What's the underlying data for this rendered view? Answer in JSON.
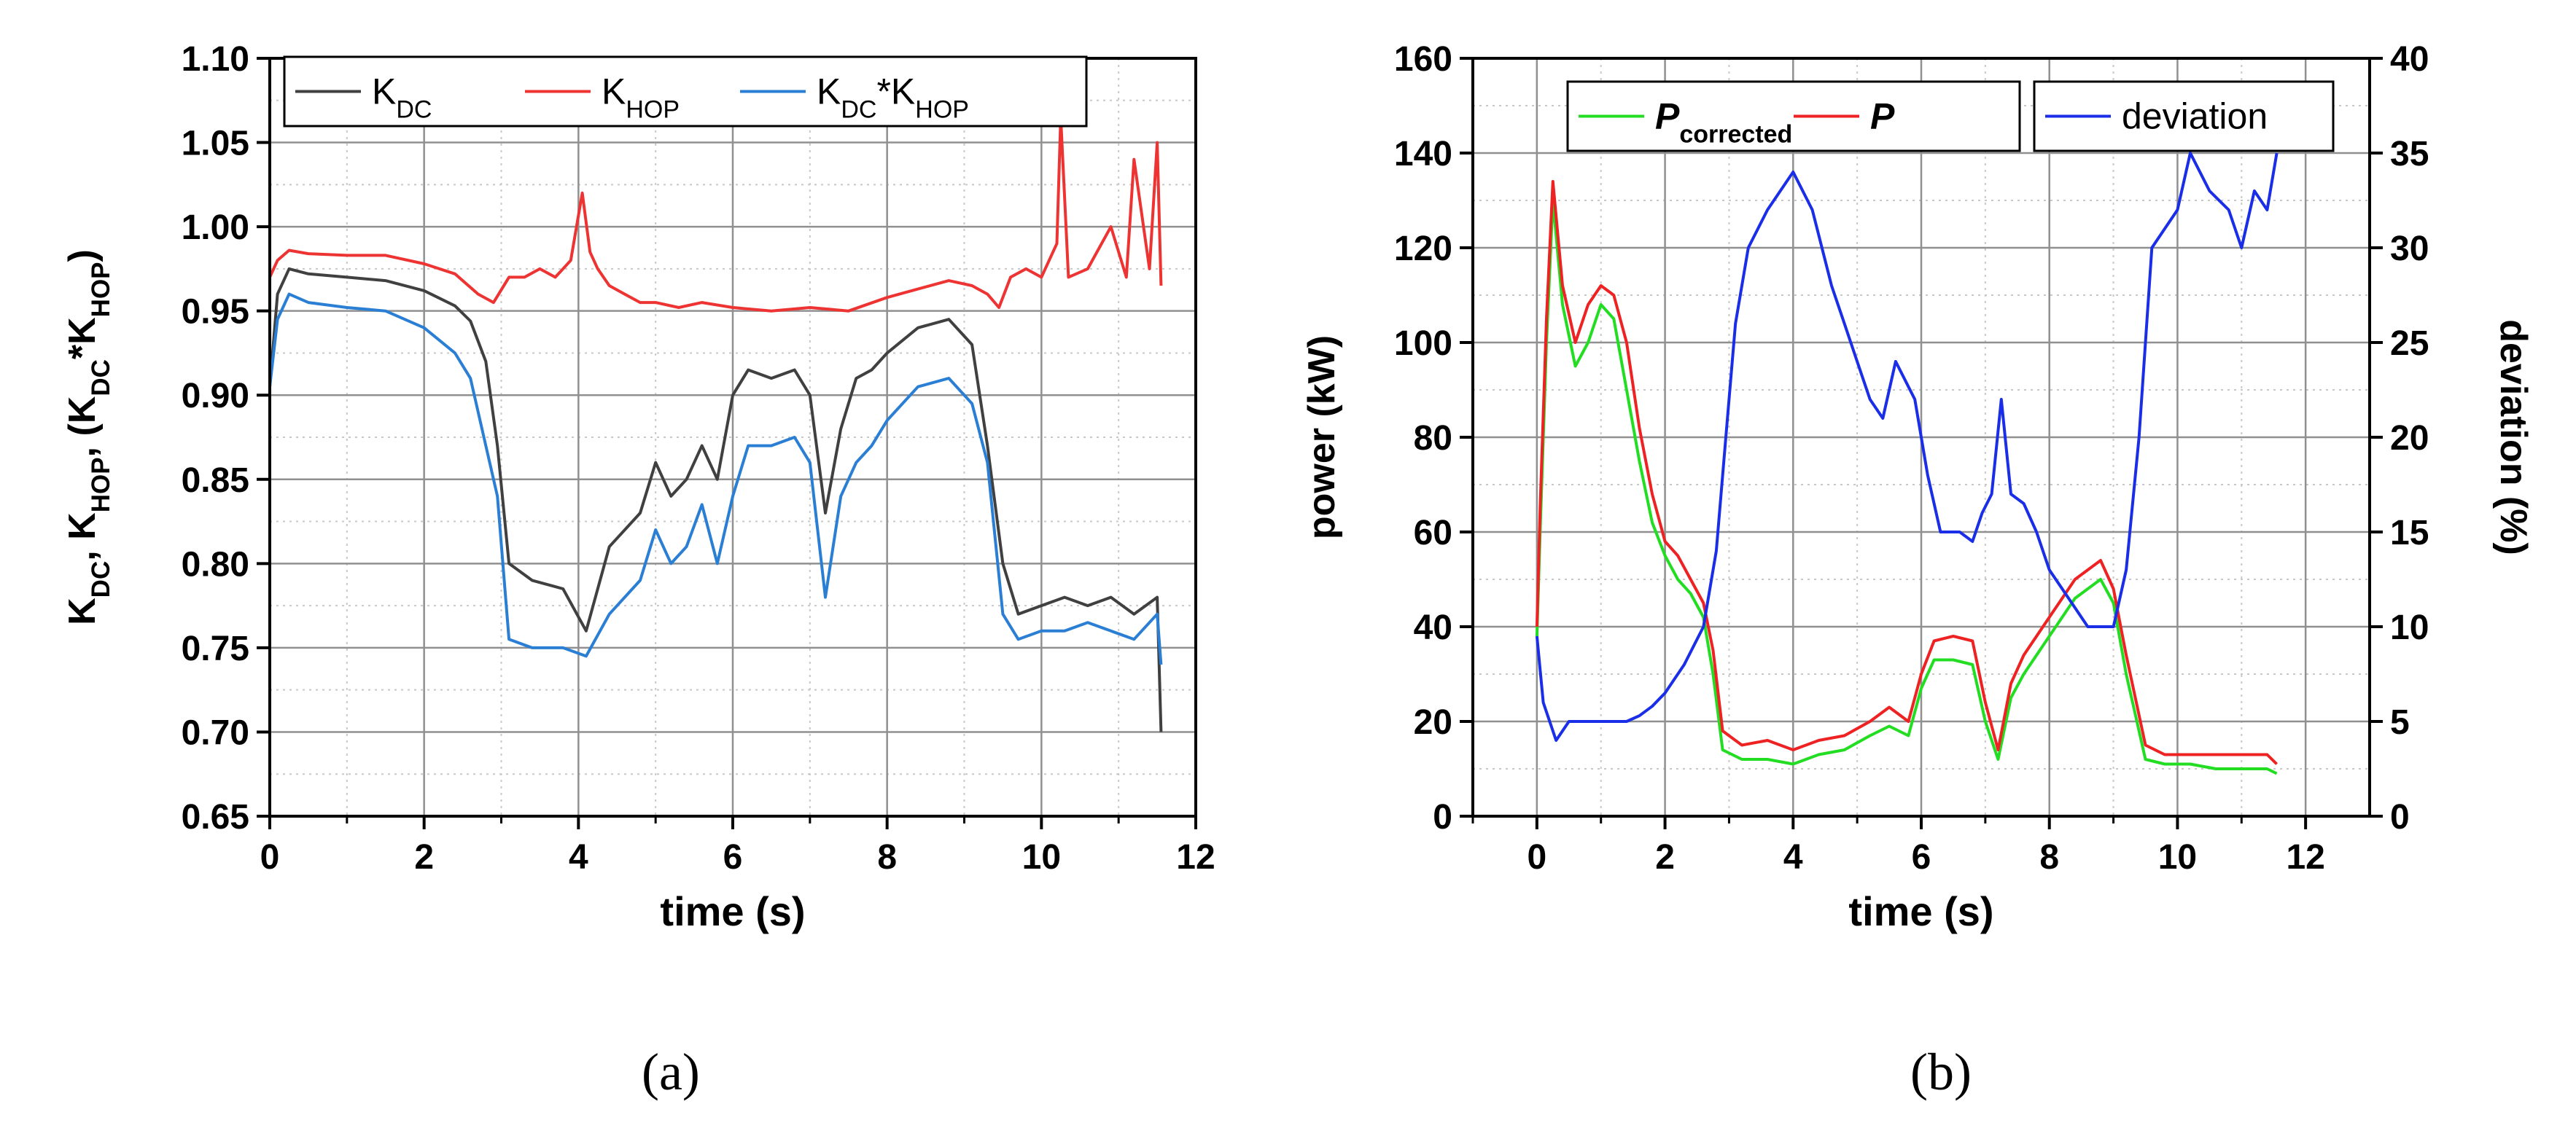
{
  "captions": {
    "a": "(a)",
    "b": "(b)"
  },
  "chart_data": [
    {
      "type": "line",
      "panel": "a",
      "title": "",
      "xlabel": "time (s)",
      "ylabel_parts": [
        {
          "t": "K"
        },
        {
          "t": "DC",
          "sub": true
        },
        {
          "t": ", K"
        },
        {
          "t": "HOP",
          "sub": true
        },
        {
          "t": ", (K"
        },
        {
          "t": "DC",
          "sub": true
        },
        {
          "t": "*K"
        },
        {
          "t": "HOP",
          "sub": true
        },
        {
          "t": ")"
        }
      ],
      "xlim": [
        0,
        12
      ],
      "ylim": [
        0.65,
        1.1
      ],
      "xticks": [
        0,
        2,
        4,
        6,
        8,
        10,
        12
      ],
      "xtick_labels": [
        "0",
        "2",
        "4",
        "6",
        "8",
        "10",
        "12"
      ],
      "yticks": [
        0.65,
        0.7,
        0.75,
        0.8,
        0.85,
        0.9,
        0.95,
        1.0,
        1.05,
        1.1
      ],
      "ytick_labels": [
        "0.65",
        "0.70",
        "0.75",
        "0.80",
        "0.85",
        "0.90",
        "0.95",
        "1.00",
        "1.05",
        "1.10"
      ],
      "grid": true,
      "legend_position": "top",
      "series": [
        {
          "name": "K_DC",
          "label_parts": [
            {
              "t": "K"
            },
            {
              "t": "DC",
              "sub": true
            }
          ],
          "color": "#404040",
          "x": [
            0,
            0.1,
            0.25,
            0.5,
            1.0,
            1.5,
            2.0,
            2.4,
            2.6,
            2.8,
            2.95,
            3.1,
            3.4,
            3.8,
            4.1,
            4.4,
            4.8,
            5.0,
            5.2,
            5.4,
            5.6,
            5.8,
            6.0,
            6.2,
            6.5,
            6.8,
            7.0,
            7.2,
            7.4,
            7.6,
            7.8,
            8.0,
            8.4,
            8.8,
            9.1,
            9.3,
            9.5,
            9.7,
            10.0,
            10.3,
            10.6,
            10.9,
            11.2,
            11.5,
            11.55
          ],
          "y": [
            0.905,
            0.96,
            0.975,
            0.972,
            0.97,
            0.968,
            0.962,
            0.953,
            0.944,
            0.92,
            0.87,
            0.8,
            0.79,
            0.785,
            0.76,
            0.81,
            0.83,
            0.86,
            0.84,
            0.85,
            0.87,
            0.85,
            0.9,
            0.915,
            0.91,
            0.915,
            0.9,
            0.83,
            0.88,
            0.91,
            0.915,
            0.925,
            0.94,
            0.945,
            0.93,
            0.87,
            0.8,
            0.77,
            0.775,
            0.78,
            0.775,
            0.78,
            0.77,
            0.78,
            0.7
          ]
        },
        {
          "name": "K_HOP",
          "label_parts": [
            {
              "t": "K"
            },
            {
              "t": "HOP",
              "sub": true
            }
          ],
          "color": "#ee3333",
          "x": [
            0,
            0.1,
            0.25,
            0.5,
            1.0,
            1.5,
            2.0,
            2.4,
            2.7,
            2.9,
            3.1,
            3.3,
            3.5,
            3.7,
            3.9,
            4.05,
            4.15,
            4.25,
            4.4,
            4.6,
            4.8,
            5.0,
            5.3,
            5.6,
            6.0,
            6.5,
            7.0,
            7.5,
            8.0,
            8.4,
            8.8,
            9.1,
            9.3,
            9.45,
            9.6,
            9.8,
            10.0,
            10.2,
            10.25,
            10.35,
            10.6,
            10.9,
            11.1,
            11.2,
            11.4,
            11.5,
            11.55
          ],
          "y": [
            0.97,
            0.98,
            0.986,
            0.984,
            0.983,
            0.983,
            0.978,
            0.972,
            0.96,
            0.955,
            0.97,
            0.97,
            0.975,
            0.97,
            0.98,
            1.02,
            0.985,
            0.975,
            0.965,
            0.96,
            0.955,
            0.955,
            0.952,
            0.955,
            0.952,
            0.95,
            0.952,
            0.95,
            0.958,
            0.963,
            0.968,
            0.965,
            0.96,
            0.952,
            0.97,
            0.975,
            0.97,
            0.99,
            1.065,
            0.97,
            0.975,
            1.0,
            0.97,
            1.04,
            0.975,
            1.05,
            0.965
          ]
        },
        {
          "name": "K_DC*K_HOP",
          "label_parts": [
            {
              "t": "K"
            },
            {
              "t": "DC",
              "sub": true
            },
            {
              "t": "*K"
            },
            {
              "t": "HOP",
              "sub": true
            }
          ],
          "color": "#2a7fd4",
          "x": [
            0,
            0.1,
            0.25,
            0.5,
            1.0,
            1.5,
            2.0,
            2.4,
            2.6,
            2.8,
            2.95,
            3.1,
            3.4,
            3.8,
            4.1,
            4.4,
            4.8,
            5.0,
            5.2,
            5.4,
            5.6,
            5.8,
            6.0,
            6.2,
            6.5,
            6.8,
            7.0,
            7.2,
            7.4,
            7.6,
            7.8,
            8.0,
            8.4,
            8.8,
            9.1,
            9.3,
            9.5,
            9.7,
            10.0,
            10.3,
            10.6,
            10.9,
            11.2,
            11.5,
            11.55
          ],
          "y": [
            0.905,
            0.945,
            0.96,
            0.955,
            0.952,
            0.95,
            0.94,
            0.925,
            0.91,
            0.87,
            0.84,
            0.755,
            0.75,
            0.75,
            0.745,
            0.77,
            0.79,
            0.82,
            0.8,
            0.81,
            0.835,
            0.8,
            0.84,
            0.87,
            0.87,
            0.875,
            0.86,
            0.78,
            0.84,
            0.86,
            0.87,
            0.885,
            0.905,
            0.91,
            0.895,
            0.86,
            0.77,
            0.755,
            0.76,
            0.76,
            0.765,
            0.76,
            0.755,
            0.77,
            0.74
          ]
        }
      ]
    },
    {
      "type": "line",
      "panel": "b",
      "title": "",
      "xlabel": "time (s)",
      "ylabel": "power (kW)",
      "y2label": "deviation (%)",
      "xlim": [
        -1,
        13
      ],
      "ylim": [
        0,
        160
      ],
      "y2lim": [
        0,
        40
      ],
      "xticks": [
        0,
        2,
        4,
        6,
        8,
        10,
        12
      ],
      "xtick_labels": [
        "0",
        "2",
        "4",
        "6",
        "8",
        "10",
        "12"
      ],
      "yticks": [
        0,
        20,
        40,
        60,
        80,
        100,
        120,
        140,
        160
      ],
      "ytick_labels": [
        "0",
        "20",
        "40",
        "60",
        "80",
        "100",
        "120",
        "140",
        "160"
      ],
      "y2ticks": [
        0,
        5,
        10,
        15,
        20,
        25,
        30,
        35,
        40
      ],
      "y2tick_labels": [
        "0",
        "5",
        "10",
        "15",
        "20",
        "25",
        "30",
        "35",
        "40"
      ],
      "grid": true,
      "legend_position": "top",
      "series": [
        {
          "name": "P_corrected",
          "label_parts": [
            {
              "t": "P",
              "bold": true,
              "italic": true
            },
            {
              "t": "corrected",
              "sub": true,
              "bold": true
            }
          ],
          "color": "#22dd22",
          "axis": "left",
          "x": [
            0,
            0.05,
            0.15,
            0.25,
            0.4,
            0.6,
            0.8,
            1.0,
            1.2,
            1.4,
            1.6,
            1.8,
            2.0,
            2.2,
            2.4,
            2.6,
            2.75,
            2.9,
            3.2,
            3.6,
            4.0,
            4.4,
            4.8,
            5.2,
            5.5,
            5.8,
            6.0,
            6.2,
            6.5,
            6.8,
            7.0,
            7.2,
            7.4,
            7.6,
            8.0,
            8.4,
            8.8,
            9.0,
            9.2,
            9.5,
            9.8,
            10.2,
            10.6,
            11.0,
            11.4,
            11.55
          ],
          "y": [
            38,
            60,
            100,
            130,
            108,
            95,
            100,
            108,
            105,
            90,
            75,
            62,
            55,
            50,
            47,
            42,
            30,
            14,
            12,
            12,
            11,
            13,
            14,
            17,
            19,
            17,
            27,
            33,
            33,
            32,
            20,
            12,
            25,
            30,
            38,
            46,
            50,
            45,
            30,
            12,
            11,
            11,
            10,
            10,
            10,
            9
          ]
        },
        {
          "name": "P",
          "label_parts": [
            {
              "t": "P",
              "bold": true,
              "italic": true
            }
          ],
          "color": "#ee2222",
          "axis": "left",
          "x": [
            0,
            0.05,
            0.15,
            0.25,
            0.4,
            0.6,
            0.8,
            1.0,
            1.2,
            1.4,
            1.6,
            1.8,
            2.0,
            2.2,
            2.4,
            2.6,
            2.75,
            2.9,
            3.2,
            3.6,
            4.0,
            4.4,
            4.8,
            5.2,
            5.5,
            5.8,
            6.0,
            6.2,
            6.5,
            6.8,
            7.0,
            7.2,
            7.4,
            7.6,
            8.0,
            8.4,
            8.8,
            9.0,
            9.2,
            9.5,
            9.8,
            10.2,
            10.6,
            11.0,
            11.4,
            11.55
          ],
          "y": [
            40,
            65,
            105,
            134,
            112,
            100,
            108,
            112,
            110,
            100,
            82,
            68,
            58,
            55,
            50,
            45,
            35,
            18,
            15,
            16,
            14,
            16,
            17,
            20,
            23,
            20,
            30,
            37,
            38,
            37,
            24,
            14,
            28,
            34,
            42,
            50,
            54,
            48,
            34,
            15,
            13,
            13,
            13,
            13,
            13,
            11
          ]
        },
        {
          "name": "deviation",
          "label_parts": [
            {
              "t": "deviation"
            }
          ],
          "color": "#1a2ee8",
          "axis": "right",
          "x": [
            0,
            0.1,
            0.3,
            0.5,
            0.8,
            1.1,
            1.4,
            1.6,
            1.8,
            2.0,
            2.3,
            2.6,
            2.8,
            2.95,
            3.1,
            3.3,
            3.6,
            4.0,
            4.3,
            4.6,
            4.8,
            5.0,
            5.2,
            5.4,
            5.6,
            5.9,
            6.1,
            6.3,
            6.6,
            6.8,
            6.95,
            7.1,
            7.25,
            7.4,
            7.6,
            7.8,
            8.0,
            8.3,
            8.6,
            9.0,
            9.2,
            9.4,
            9.6,
            10.0,
            10.2,
            10.5,
            10.8,
            11.0,
            11.2,
            11.4,
            11.55
          ],
          "y": [
            9.5,
            6,
            4,
            5,
            5,
            5,
            5,
            5.3,
            5.8,
            6.5,
            8,
            10,
            14,
            20,
            26,
            30,
            32,
            34,
            32,
            28,
            26,
            24,
            22,
            21,
            24,
            22,
            18,
            15,
            15,
            14.5,
            16,
            17,
            22,
            17,
            16.5,
            15,
            13,
            11.5,
            10,
            10,
            13,
            20,
            30,
            32,
            35,
            33,
            32,
            30,
            33,
            32,
            35
          ]
        }
      ]
    }
  ]
}
